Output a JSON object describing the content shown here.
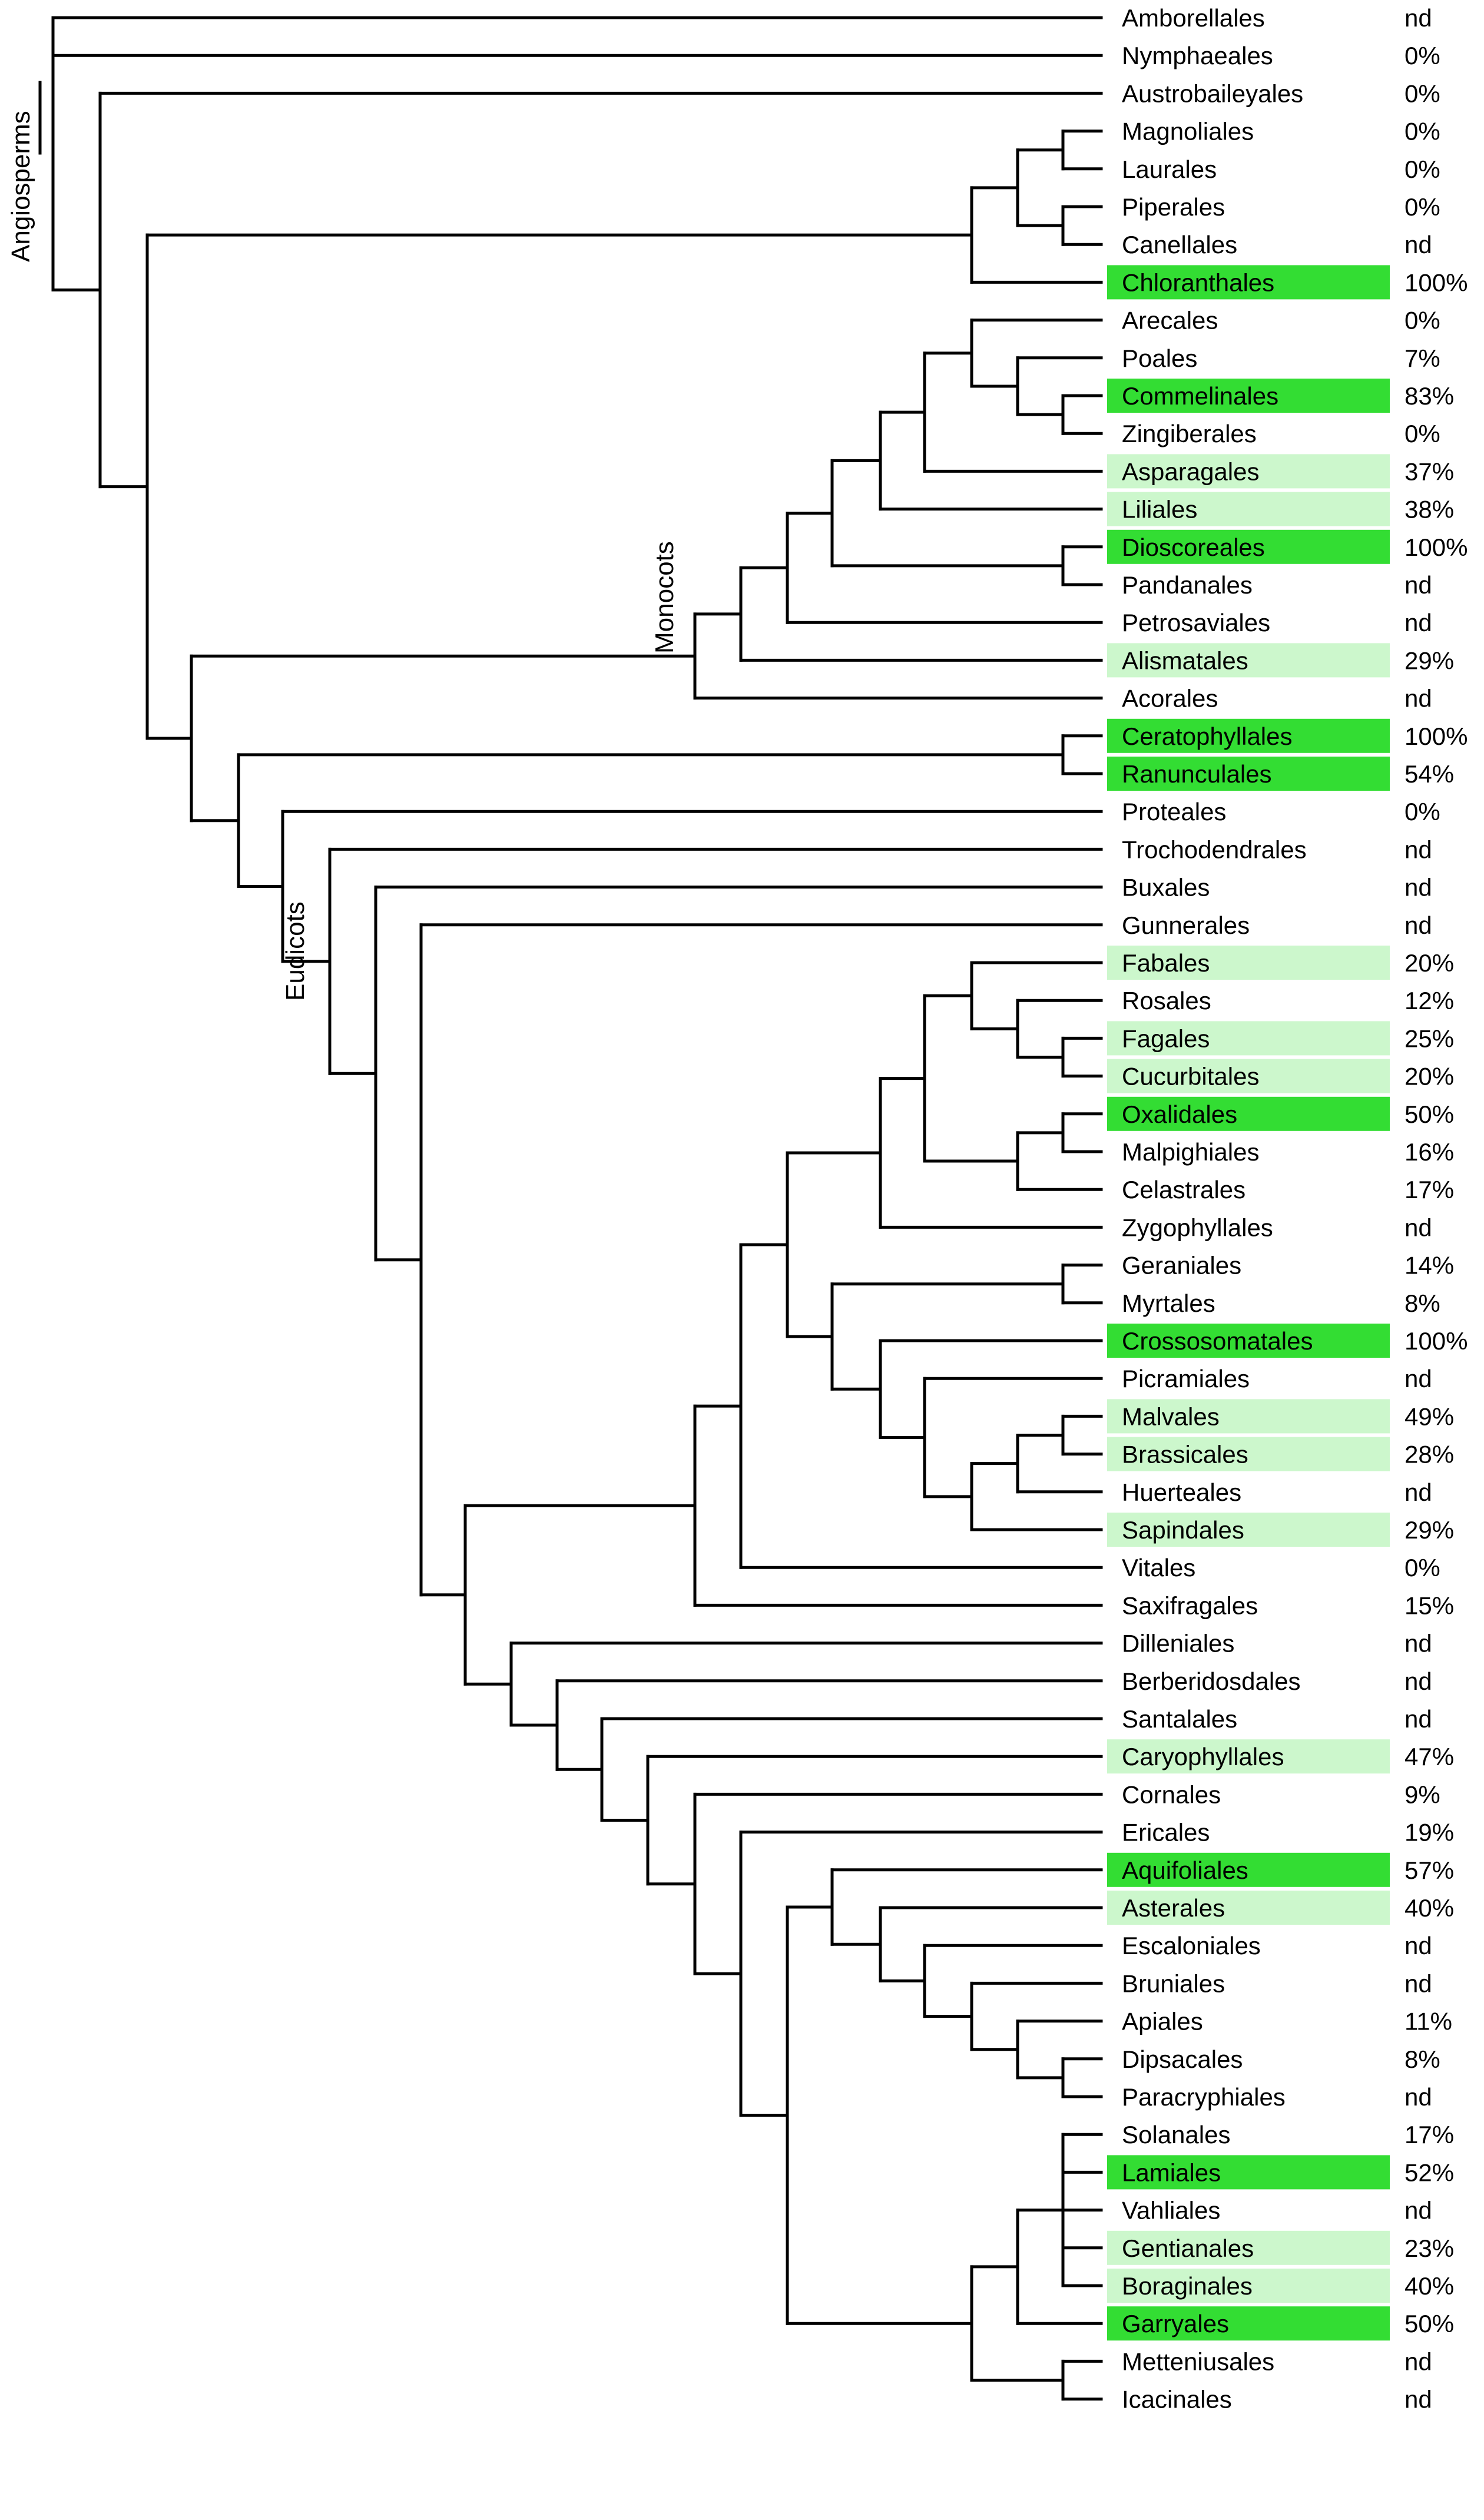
{
  "clade_labels": {
    "angiosperms": "Angiosperms",
    "monocots": "Monocots",
    "eudicots": "Eudicots"
  },
  "colors": {
    "strong": "#33dd33",
    "light": "#ccf7cc",
    "line": "#000000",
    "text": "#000000"
  },
  "orders": [
    {
      "id": "amborellales",
      "name": "Amborellales",
      "value": "nd",
      "highlight": "none"
    },
    {
      "id": "nymphaeales",
      "name": "Nymphaeales",
      "value": "0%",
      "highlight": "none"
    },
    {
      "id": "austrobaileyales",
      "name": "Austrobaileyales",
      "value": "0%",
      "highlight": "none"
    },
    {
      "id": "magnoliales",
      "name": "Magnoliales",
      "value": "0%",
      "highlight": "none"
    },
    {
      "id": "laurales",
      "name": "Laurales",
      "value": "0%",
      "highlight": "none"
    },
    {
      "id": "piperales",
      "name": "Piperales",
      "value": "0%",
      "highlight": "none"
    },
    {
      "id": "canellales",
      "name": "Canellales",
      "value": "nd",
      "highlight": "none"
    },
    {
      "id": "chloranthales",
      "name": "Chloranthales",
      "value": "100%",
      "highlight": "strong"
    },
    {
      "id": "arecales",
      "name": "Arecales",
      "value": "0%",
      "highlight": "none"
    },
    {
      "id": "poales",
      "name": "Poales",
      "value": "7%",
      "highlight": "none"
    },
    {
      "id": "commelinales",
      "name": "Commelinales",
      "value": "83%",
      "highlight": "strong"
    },
    {
      "id": "zingiberales",
      "name": "Zingiberales",
      "value": "0%",
      "highlight": "none"
    },
    {
      "id": "asparagales",
      "name": "Asparagales",
      "value": "37%",
      "highlight": "light"
    },
    {
      "id": "liliales",
      "name": "Liliales",
      "value": "38%",
      "highlight": "light"
    },
    {
      "id": "dioscoreales",
      "name": "Dioscoreales",
      "value": "100%",
      "highlight": "strong"
    },
    {
      "id": "pandanales",
      "name": "Pandanales",
      "value": "nd",
      "highlight": "none"
    },
    {
      "id": "petrosaviales",
      "name": "Petrosaviales",
      "value": "nd",
      "highlight": "none"
    },
    {
      "id": "alismatales",
      "name": "Alismatales",
      "value": "29%",
      "highlight": "light"
    },
    {
      "id": "acorales",
      "name": "Acorales",
      "value": "nd",
      "highlight": "none"
    },
    {
      "id": "ceratophyllales",
      "name": "Ceratophyllales",
      "value": "100%",
      "highlight": "strong"
    },
    {
      "id": "ranunculales",
      "name": "Ranunculales",
      "value": "54%",
      "highlight": "strong"
    },
    {
      "id": "proteales",
      "name": "Proteales",
      "value": "0%",
      "highlight": "none"
    },
    {
      "id": "trochodendrales",
      "name": "Trochodendrales",
      "value": "nd",
      "highlight": "none"
    },
    {
      "id": "buxales",
      "name": "Buxales",
      "value": "nd",
      "highlight": "none"
    },
    {
      "id": "gunnerales",
      "name": "Gunnerales",
      "value": "nd",
      "highlight": "none"
    },
    {
      "id": "fabales",
      "name": "Fabales",
      "value": "20%",
      "highlight": "light"
    },
    {
      "id": "rosales",
      "name": "Rosales",
      "value": "12%",
      "highlight": "none"
    },
    {
      "id": "fagales",
      "name": "Fagales",
      "value": "25%",
      "highlight": "light"
    },
    {
      "id": "cucurbitales",
      "name": "Cucurbitales",
      "value": "20%",
      "highlight": "light"
    },
    {
      "id": "oxalidales",
      "name": "Oxalidales",
      "value": "50%",
      "highlight": "strong"
    },
    {
      "id": "malpighiales",
      "name": "Malpighiales",
      "value": "16%",
      "highlight": "none"
    },
    {
      "id": "celastrales",
      "name": "Celastrales",
      "value": "17%",
      "highlight": "none"
    },
    {
      "id": "zygophyllales",
      "name": "Zygophyllales",
      "value": "nd",
      "highlight": "none"
    },
    {
      "id": "geraniales",
      "name": "Geraniales",
      "value": "14%",
      "highlight": "none"
    },
    {
      "id": "myrtales",
      "name": "Myrtales",
      "value": "8%",
      "highlight": "none"
    },
    {
      "id": "crossosomatales",
      "name": "Crossosomatales",
      "value": "100%",
      "highlight": "strong"
    },
    {
      "id": "picramiales",
      "name": "Picramiales",
      "value": "nd",
      "highlight": "none"
    },
    {
      "id": "malvales",
      "name": "Malvales",
      "value": "49%",
      "highlight": "light"
    },
    {
      "id": "brassicales",
      "name": "Brassicales",
      "value": "28%",
      "highlight": "light"
    },
    {
      "id": "huerteales",
      "name": "Huerteales",
      "value": "nd",
      "highlight": "none"
    },
    {
      "id": "sapindales",
      "name": "Sapindales",
      "value": "29%",
      "highlight": "light"
    },
    {
      "id": "vitales",
      "name": "Vitales",
      "value": "0%",
      "highlight": "none"
    },
    {
      "id": "saxifragales",
      "name": "Saxifragales",
      "value": "15%",
      "highlight": "none"
    },
    {
      "id": "dilleniales",
      "name": "Dilleniales",
      "value": "nd",
      "highlight": "none"
    },
    {
      "id": "berberidopsidales",
      "name": "Berberidosdales",
      "value": "nd",
      "highlight": "none"
    },
    {
      "id": "santalales",
      "name": "Santalales",
      "value": "nd",
      "highlight": "none"
    },
    {
      "id": "caryophyllales",
      "name": "Caryophyllales",
      "value": "47%",
      "highlight": "light"
    },
    {
      "id": "cornales",
      "name": "Cornales",
      "value": "9%",
      "highlight": "none"
    },
    {
      "id": "ericales",
      "name": "Ericales",
      "value": "19%",
      "highlight": "none"
    },
    {
      "id": "aquifoliales",
      "name": "Aquifoliales",
      "value": "57%",
      "highlight": "strong"
    },
    {
      "id": "asterales",
      "name": "Asterales",
      "value": "40%",
      "highlight": "light"
    },
    {
      "id": "escalloniales",
      "name": "Escaloniales",
      "value": "nd",
      "highlight": "none"
    },
    {
      "id": "bruniales",
      "name": "Bruniales",
      "value": "nd",
      "highlight": "none"
    },
    {
      "id": "apiales",
      "name": "Apiales",
      "value": "11%",
      "highlight": "none"
    },
    {
      "id": "dipsacales",
      "name": "Dipsacales",
      "value": "8%",
      "highlight": "none"
    },
    {
      "id": "paracryphiales",
      "name": "Paracryphiales",
      "value": "nd",
      "highlight": "none"
    },
    {
      "id": "solanales",
      "name": "Solanales",
      "value": "17%",
      "highlight": "none"
    },
    {
      "id": "lamiales",
      "name": "Lamiales",
      "value": "52%",
      "highlight": "strong"
    },
    {
      "id": "vahliales",
      "name": "Vahliales",
      "value": "nd",
      "highlight": "none"
    },
    {
      "id": "gentianales",
      "name": "Gentianales",
      "value": "23%",
      "highlight": "light"
    },
    {
      "id": "boraginales",
      "name": "Boraginales",
      "value": "40%",
      "highlight": "light"
    },
    {
      "id": "garryales",
      "name": "Garryales",
      "value": "50%",
      "highlight": "strong"
    },
    {
      "id": "metteniusales",
      "name": "Metteniusales",
      "value": "nd",
      "highlight": "none"
    },
    {
      "id": "icacinales",
      "name": "Icacinales",
      "value": "nd",
      "highlight": "none"
    }
  ]
}
